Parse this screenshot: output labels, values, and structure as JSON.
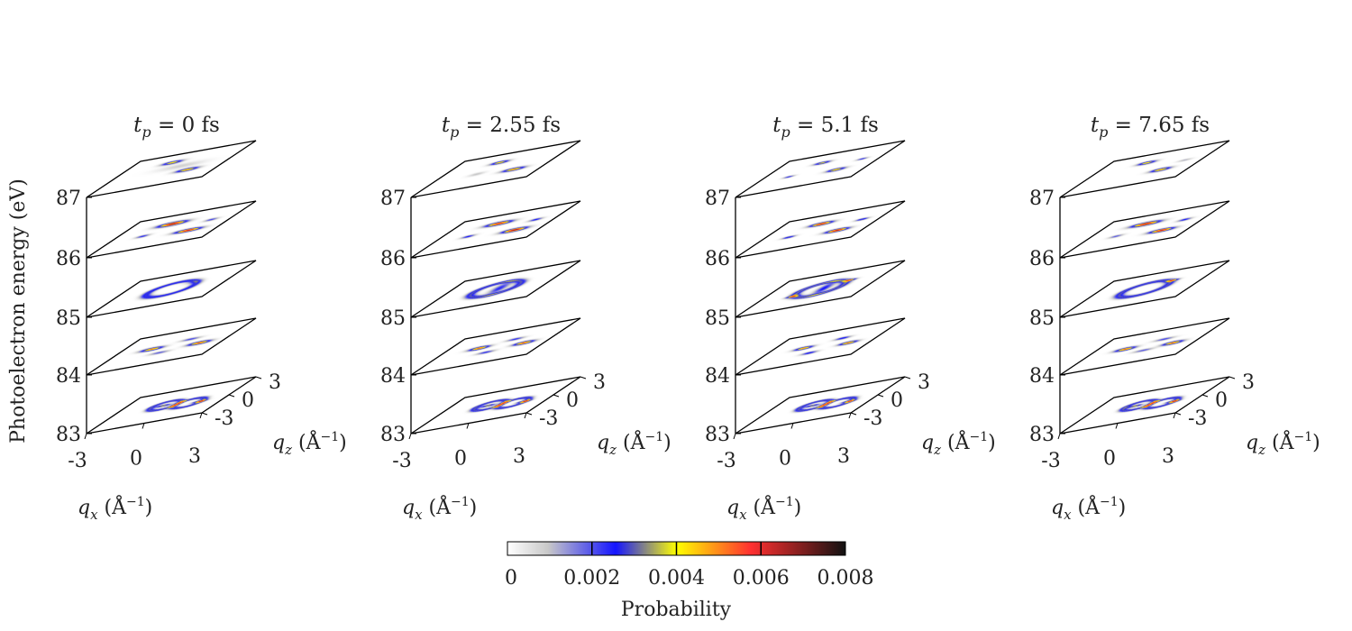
{
  "chart_data": {
    "type": "heatmap",
    "panels": [
      {
        "title_var": "t",
        "title_sub": "p",
        "title_rest": " = 0 fs",
        "layers": [
          {
            "energy": 87,
            "blobs": [
              {
                "x": -0.6,
                "z": 1.4,
                "a": 0.0044,
                "rx": 0.5,
                "rz": 0.3
              },
              {
                "x": 1.2,
                "z": -0.8,
                "a": 0.0048,
                "rx": 0.55,
                "rz": 0.3
              },
              {
                "x": 0.4,
                "z": 0.3,
                "a": 0.0008,
                "rx": 1.2,
                "rz": 0.5
              }
            ]
          },
          {
            "energy": 86,
            "blobs": [
              {
                "x": -0.5,
                "z": 1.2,
                "a": 0.0068,
                "rx": 0.7,
                "rz": 0.35
              },
              {
                "x": 1.3,
                "z": -0.9,
                "a": 0.0064,
                "rx": 0.65,
                "rz": 0.3
              },
              {
                "x": -1.3,
                "z": -0.4,
                "a": 0.0024,
                "rx": 0.35,
                "rz": 0.25
              },
              {
                "x": 1.8,
                "z": 0.6,
                "a": 0.0022,
                "rx": 0.35,
                "rz": 0.25
              }
            ]
          },
          {
            "energy": 85,
            "blobs": [
              {
                "x": 0,
                "z": 0,
                "a": 0.0028,
                "ring": 1.2,
                "w": 0.28
              },
              {
                "x": 0.8,
                "z": 0.6,
                "a": 0.0006,
                "rx": 0.4,
                "rz": 0.3
              }
            ]
          },
          {
            "energy": 84,
            "blobs": [
              {
                "x": -1.1,
                "z": 0.2,
                "a": 0.0052,
                "rx": 0.55,
                "rz": 0.3
              },
              {
                "x": 1.6,
                "z": -0.3,
                "a": 0.0056,
                "rx": 0.55,
                "rz": 0.3
              },
              {
                "x": 0.6,
                "z": 0.9,
                "a": 0.0022,
                "rx": 0.5,
                "rz": 0.25
              },
              {
                "x": -0.2,
                "z": -0.9,
                "a": 0.002,
                "rx": 0.5,
                "rz": 0.25
              }
            ]
          },
          {
            "energy": 83,
            "blobs": [
              {
                "x": -0.4,
                "z": 0.2,
                "a": 0.003,
                "ring": 0.75,
                "w": 0.22
              },
              {
                "x": 1.0,
                "z": -0.2,
                "a": 0.003,
                "ring": 0.75,
                "w": 0.22
              },
              {
                "x": -0.5,
                "z": 0.2,
                "a": 0.004,
                "rx": 0.35,
                "rz": 0.2
              },
              {
                "x": 1.6,
                "z": -0.3,
                "a": 0.004,
                "rx": 0.35,
                "rz": 0.2
              }
            ]
          }
        ]
      },
      {
        "title_var": "t",
        "title_sub": "p",
        "title_rest": " = 2.55 fs",
        "layers": [
          {
            "energy": 87,
            "blobs": [
              {
                "x": -0.4,
                "z": 1.3,
                "a": 0.0044,
                "rx": 0.45,
                "rz": 0.28
              },
              {
                "x": 1.3,
                "z": -0.8,
                "a": 0.005,
                "rx": 0.55,
                "rz": 0.3
              },
              {
                "x": -0.8,
                "z": -0.4,
                "a": 0.001,
                "rx": 0.4,
                "rz": 0.3
              }
            ]
          },
          {
            "energy": 86,
            "blobs": [
              {
                "x": -0.4,
                "z": 1.2,
                "a": 0.0062,
                "rx": 0.65,
                "rz": 0.33
              },
              {
                "x": 1.4,
                "z": -0.9,
                "a": 0.0068,
                "rx": 0.6,
                "rz": 0.32
              },
              {
                "x": -1.2,
                "z": -0.5,
                "a": 0.0026,
                "rx": 0.35,
                "rz": 0.25
              },
              {
                "x": 1.8,
                "z": 0.6,
                "a": 0.0026,
                "rx": 0.35,
                "rz": 0.25
              }
            ]
          },
          {
            "energy": 85,
            "blobs": [
              {
                "x": 0,
                "z": 0,
                "a": 0.003,
                "ring": 1.2,
                "w": 0.28
              },
              {
                "x": 0.2,
                "z": 0,
                "a": 0.0024,
                "rx": 0.4,
                "rz": 1.0
              }
            ]
          },
          {
            "energy": 84,
            "blobs": [
              {
                "x": -1.0,
                "z": 0.3,
                "a": 0.0054,
                "rx": 0.5,
                "rz": 0.3
              },
              {
                "x": 1.6,
                "z": -0.3,
                "a": 0.0056,
                "rx": 0.5,
                "rz": 0.3
              },
              {
                "x": 0.6,
                "z": 0.9,
                "a": 0.0024,
                "rx": 0.45,
                "rz": 0.25
              },
              {
                "x": -0.1,
                "z": -0.9,
                "a": 0.0024,
                "rx": 0.45,
                "rz": 0.25
              }
            ]
          },
          {
            "energy": 83,
            "blobs": [
              {
                "x": -0.4,
                "z": 0.2,
                "a": 0.003,
                "ring": 0.75,
                "w": 0.22
              },
              {
                "x": 1.0,
                "z": -0.2,
                "a": 0.003,
                "ring": 0.75,
                "w": 0.22
              },
              {
                "x": -0.5,
                "z": 0.2,
                "a": 0.004,
                "rx": 0.35,
                "rz": 0.2
              },
              {
                "x": 1.6,
                "z": -0.3,
                "a": 0.004,
                "rx": 0.35,
                "rz": 0.2
              }
            ]
          }
        ]
      },
      {
        "title_var": "t",
        "title_sub": "p",
        "title_rest": " = 5.1 fs",
        "layers": [
          {
            "energy": 87,
            "blobs": [
              {
                "x": -0.5,
                "z": 1.3,
                "a": 0.004,
                "rx": 0.4,
                "rz": 0.25
              },
              {
                "x": 1.2,
                "z": -0.8,
                "a": 0.0046,
                "rx": 0.45,
                "rz": 0.28
              },
              {
                "x": -1.4,
                "z": -0.5,
                "a": 0.0024,
                "rx": 0.28,
                "rz": 0.2
              },
              {
                "x": 1.9,
                "z": 0.6,
                "a": 0.0024,
                "rx": 0.28,
                "rz": 0.2
              }
            ]
          },
          {
            "energy": 86,
            "blobs": [
              {
                "x": -0.5,
                "z": 1.2,
                "a": 0.0064,
                "rx": 0.55,
                "rz": 0.3
              },
              {
                "x": 1.3,
                "z": -0.9,
                "a": 0.0066,
                "rx": 0.55,
                "rz": 0.3
              },
              {
                "x": -1.4,
                "z": -0.5,
                "a": 0.003,
                "rx": 0.33,
                "rz": 0.22
              },
              {
                "x": 1.9,
                "z": 0.6,
                "a": 0.003,
                "rx": 0.33,
                "rz": 0.22
              }
            ]
          },
          {
            "energy": 85,
            "blobs": [
              {
                "x": 0,
                "z": 0,
                "a": 0.0032,
                "ring": 1.2,
                "w": 0.28
              },
              {
                "x": 1.2,
                "z": 0.8,
                "a": 0.004,
                "rx": 0.3,
                "rz": 0.2
              },
              {
                "x": -1.2,
                "z": -0.6,
                "a": 0.0036,
                "rx": 0.3,
                "rz": 0.2
              },
              {
                "x": 0.2,
                "z": 0,
                "a": 0.0026,
                "rx": 0.35,
                "rz": 1.0
              }
            ]
          },
          {
            "energy": 84,
            "blobs": [
              {
                "x": -1.0,
                "z": 0.3,
                "a": 0.005,
                "rx": 0.45,
                "rz": 0.28
              },
              {
                "x": 1.6,
                "z": -0.3,
                "a": 0.0052,
                "rx": 0.45,
                "rz": 0.28
              },
              {
                "x": 0.7,
                "z": 1.0,
                "a": 0.0028,
                "rx": 0.4,
                "rz": 0.25
              },
              {
                "x": -0.1,
                "z": -1.0,
                "a": 0.0028,
                "rx": 0.4,
                "rz": 0.25
              }
            ]
          },
          {
            "energy": 83,
            "blobs": [
              {
                "x": -0.4,
                "z": 0.2,
                "a": 0.003,
                "ring": 0.75,
                "w": 0.22
              },
              {
                "x": 1.0,
                "z": -0.2,
                "a": 0.003,
                "ring": 0.75,
                "w": 0.22
              },
              {
                "x": -0.5,
                "z": 0.2,
                "a": 0.0038,
                "rx": 0.35,
                "rz": 0.2
              },
              {
                "x": 1.6,
                "z": -0.3,
                "a": 0.0036,
                "rx": 0.35,
                "rz": 0.2
              }
            ]
          }
        ]
      },
      {
        "title_var": "t",
        "title_sub": "p",
        "title_rest": " = 7.65 fs",
        "layers": [
          {
            "energy": 87,
            "blobs": [
              {
                "x": -0.5,
                "z": 1.3,
                "a": 0.0044,
                "rx": 0.45,
                "rz": 0.28
              },
              {
                "x": 1.2,
                "z": -0.8,
                "a": 0.0048,
                "rx": 0.5,
                "rz": 0.3
              },
              {
                "x": 1.9,
                "z": 0.4,
                "a": 0.0012,
                "rx": 0.35,
                "rz": 0.22
              }
            ]
          },
          {
            "energy": 86,
            "blobs": [
              {
                "x": -0.5,
                "z": 1.2,
                "a": 0.0066,
                "rx": 0.7,
                "rz": 0.33
              },
              {
                "x": 1.3,
                "z": -0.9,
                "a": 0.0064,
                "rx": 0.6,
                "rz": 0.3
              },
              {
                "x": 1.8,
                "z": 0.6,
                "a": 0.0026,
                "rx": 0.35,
                "rz": 0.25
              },
              {
                "x": -1.3,
                "z": -0.4,
                "a": 0.002,
                "rx": 0.35,
                "rz": 0.25
              }
            ]
          },
          {
            "energy": 85,
            "blobs": [
              {
                "x": 0,
                "z": 0,
                "a": 0.003,
                "ring": 1.2,
                "w": 0.28
              },
              {
                "x": 1.1,
                "z": 0.8,
                "a": 0.0036,
                "rx": 0.3,
                "rz": 0.2
              }
            ]
          },
          {
            "energy": 84,
            "blobs": [
              {
                "x": -1.1,
                "z": 0.2,
                "a": 0.0054,
                "rx": 0.5,
                "rz": 0.3
              },
              {
                "x": 1.6,
                "z": -0.3,
                "a": 0.0054,
                "rx": 0.5,
                "rz": 0.3
              },
              {
                "x": 0.6,
                "z": 0.9,
                "a": 0.0022,
                "rx": 0.5,
                "rz": 0.25
              },
              {
                "x": 0.3,
                "z": -0.8,
                "a": 0.002,
                "rx": 0.5,
                "rz": 0.25
              }
            ]
          },
          {
            "energy": 83,
            "blobs": [
              {
                "x": -0.4,
                "z": 0.2,
                "a": 0.003,
                "ring": 0.75,
                "w": 0.22
              },
              {
                "x": 1.0,
                "z": -0.2,
                "a": 0.003,
                "ring": 0.75,
                "w": 0.22
              },
              {
                "x": -0.6,
                "z": 0.2,
                "a": 0.0042,
                "rx": 0.35,
                "rz": 0.2
              },
              {
                "x": 1.6,
                "z": -0.3,
                "a": 0.004,
                "rx": 0.35,
                "rz": 0.2
              }
            ]
          }
        ]
      }
    ],
    "energy_ticks": [
      "87",
      "86",
      "85",
      "84",
      "83"
    ],
    "ylabel": "Photoelectron energy (eV)",
    "qx_ticks": [
      "-3",
      "0",
      "3"
    ],
    "qz_ticks": [
      "3",
      "0",
      "-3"
    ],
    "qx_label": {
      "var": "q",
      "sub": "x",
      "unit_open": " (Å",
      "sup": "−1",
      "unit_close": ")"
    },
    "qz_label": {
      "var": "q",
      "sub": "z",
      "unit_open": " (Å",
      "sup": "−1",
      "unit_close": ")"
    },
    "xlim": [
      -3,
      3
    ],
    "zlim": [
      -3,
      3
    ],
    "colorbar": {
      "label": "Probability",
      "ticks": [
        "0",
        "0.002",
        "0.004",
        "0.006",
        "0.008"
      ],
      "range": [
        0,
        0.008
      ],
      "stops": [
        "#ffffff",
        "#c8c8c8",
        "#1414ff",
        "#ffff00",
        "#ff3030",
        "#8a2020",
        "#111111"
      ]
    }
  }
}
